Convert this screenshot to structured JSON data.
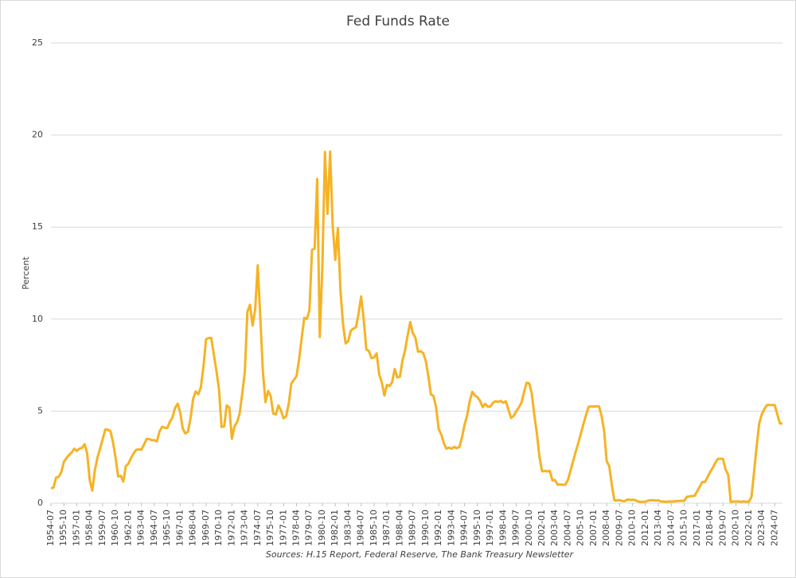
{
  "chart_data": {
    "type": "line",
    "title": "Fed Funds Rate",
    "y_label": "Percent",
    "source": "Sources: H.15 Report, Federal Reserve, The Bank Treasury Newsletter",
    "color": "#f5b324",
    "grid": true,
    "ylim": [
      0,
      25
    ],
    "yticks": [
      0,
      5,
      10,
      15,
      20,
      25
    ],
    "categories": [
      "1954-07",
      null,
      null,
      null,
      null,
      "1955-10",
      null,
      null,
      null,
      null,
      "1957-01",
      null,
      null,
      null,
      null,
      "1958-04",
      null,
      null,
      null,
      null,
      "1959-07",
      null,
      null,
      null,
      null,
      "1960-10",
      null,
      null,
      null,
      null,
      "1962-01",
      null,
      null,
      null,
      null,
      "1963-04",
      null,
      null,
      null,
      null,
      "1964-07",
      null,
      null,
      null,
      null,
      "1965-10",
      null,
      null,
      null,
      null,
      "1967-01",
      null,
      null,
      null,
      null,
      "1968-04",
      null,
      null,
      null,
      null,
      "1969-07",
      null,
      null,
      null,
      null,
      "1970-10",
      null,
      null,
      null,
      null,
      "1972-01",
      null,
      null,
      null,
      null,
      "1973-04",
      null,
      null,
      null,
      null,
      "1974-07",
      null,
      null,
      null,
      null,
      "1975-10",
      null,
      null,
      null,
      null,
      "1977-01",
      null,
      null,
      null,
      null,
      "1978-04",
      null,
      null,
      null,
      null,
      "1979-07",
      null,
      null,
      null,
      null,
      "1980-10",
      null,
      null,
      null,
      null,
      "1982-01",
      null,
      null,
      null,
      null,
      "1983-04",
      null,
      null,
      null,
      null,
      "1984-07",
      null,
      null,
      null,
      null,
      "1985-10",
      null,
      null,
      null,
      null,
      "1987-01",
      null,
      null,
      null,
      null,
      "1988-04",
      null,
      null,
      null,
      null,
      "1989-07",
      null,
      null,
      null,
      null,
      "1990-10",
      null,
      null,
      null,
      null,
      "1992-01",
      null,
      null,
      null,
      null,
      "1993-04",
      null,
      null,
      null,
      null,
      "1994-07",
      null,
      null,
      null,
      null,
      "1995-10",
      null,
      null,
      null,
      null,
      "1997-01",
      null,
      null,
      null,
      null,
      "1998-04",
      null,
      null,
      null,
      null,
      "1999-07",
      null,
      null,
      null,
      null,
      "2000-10",
      null,
      null,
      null,
      null,
      "2002-01",
      null,
      null,
      null,
      null,
      "2003-04",
      null,
      null,
      null,
      null,
      "2004-07",
      null,
      null,
      null,
      null,
      "2005-10",
      null,
      null,
      null,
      null,
      "2007-01",
      null,
      null,
      null,
      null,
      "2008-04",
      null,
      null,
      null,
      null,
      "2009-07",
      null,
      null,
      null,
      null,
      "2010-10",
      null,
      null,
      null,
      null,
      "2012-01",
      null,
      null,
      null,
      null,
      "2013-04",
      null,
      null,
      null,
      null,
      "2014-07",
      null,
      null,
      null,
      null,
      "2015-10",
      null,
      null,
      null,
      null,
      "2017-01",
      null,
      null,
      null,
      null,
      "2018-04",
      null,
      null,
      null,
      null,
      "2019-07",
      null,
      null,
      null,
      null,
      "2020-10",
      null,
      null,
      null,
      null,
      "2022-01",
      null,
      null,
      null,
      null,
      "2023-04",
      null,
      null,
      null,
      null,
      "2024-07",
      null,
      null,
      null
    ],
    "values": [
      0.8,
      0.85,
      1.39,
      1.43,
      1.68,
      2.24,
      2.45,
      2.62,
      2.75,
      2.96,
      2.84,
      2.96,
      3.0,
      3.2,
      2.72,
      1.26,
      0.68,
      1.8,
      2.48,
      2.96,
      3.47,
      4.0,
      3.99,
      3.92,
      3.32,
      2.47,
      1.45,
      1.49,
      1.18,
      2.02,
      2.15,
      2.46,
      2.71,
      2.9,
      2.92,
      2.9,
      3.18,
      3.48,
      3.48,
      3.42,
      3.42,
      3.36,
      3.9,
      4.15,
      4.1,
      4.08,
      4.42,
      4.65,
      5.17,
      5.4,
      4.94,
      4.05,
      3.79,
      3.88,
      4.61,
      5.66,
      6.07,
      5.92,
      6.3,
      7.41,
      8.9,
      8.97,
      8.98,
      8.1,
      7.21,
      6.2,
      4.14,
      4.16,
      5.31,
      5.2,
      3.5,
      4.17,
      4.4,
      4.87,
      5.94,
      7.12,
      10.4,
      10.78,
      9.65,
      10.51,
      12.92,
      10.06,
      7.13,
      5.49,
      6.1,
      5.82,
      4.87,
      4.82,
      5.31,
      5.03,
      4.61,
      4.73,
      5.42,
      6.51,
      6.7,
      6.9,
      7.81,
      8.96,
      10.07,
      10.01,
      10.47,
      13.77,
      13.82,
      17.61,
      9.03,
      12.81,
      19.08,
      15.72,
      19.1,
      15.08,
      13.22,
      14.94,
      11.56,
      9.71,
      8.68,
      8.8,
      9.37,
      9.48,
      9.56,
      10.29,
      11.23,
      9.99,
      8.35,
      8.27,
      7.88,
      7.92,
      8.14,
      6.99,
      6.56,
      5.85,
      6.43,
      6.36,
      6.58,
      7.29,
      6.83,
      6.87,
      7.75,
      8.3,
      9.12,
      9.84,
      9.24,
      8.99,
      8.23,
      8.26,
      8.15,
      7.74,
      6.91,
      5.91,
      5.82,
      5.21,
      4.03,
      3.73,
      3.25,
      2.96,
      3.02,
      2.96,
      3.06,
      2.99,
      3.05,
      3.56,
      4.26,
      4.76,
      5.53,
      6.05,
      5.85,
      5.76,
      5.56,
      5.22,
      5.4,
      5.24,
      5.25,
      5.45,
      5.54,
      5.5,
      5.56,
      5.45,
      5.54,
      5.07,
      4.63,
      4.74,
      4.99,
      5.2,
      5.45,
      6.02,
      6.54,
      6.51,
      5.98,
      4.8,
      3.77,
      2.49,
      1.73,
      1.75,
      1.73,
      1.75,
      1.24,
      1.26,
      1.01,
      1.01,
      1.0,
      1.0,
      1.26,
      1.76,
      2.28,
      2.79,
      3.26,
      3.78,
      4.29,
      4.79,
      5.24,
      5.25,
      5.25,
      5.26,
      5.26,
      4.76,
      3.94,
      2.28,
      2.01,
      0.97,
      0.15,
      0.15,
      0.16,
      0.12,
      0.11,
      0.2,
      0.18,
      0.19,
      0.17,
      0.1,
      0.07,
      0.07,
      0.08,
      0.14,
      0.16,
      0.16,
      0.14,
      0.15,
      0.09,
      0.09,
      0.07,
      0.09,
      0.09,
      0.09,
      0.11,
      0.12,
      0.13,
      0.12,
      0.34,
      0.37,
      0.39,
      0.4,
      0.65,
      0.9,
      1.15,
      1.15,
      1.41,
      1.69,
      1.91,
      2.19,
      2.4,
      2.42,
      2.4,
      1.83,
      1.55,
      0.05,
      0.09,
      0.09,
      0.09,
      0.07,
      0.1,
      0.08,
      0.08,
      0.33,
      1.68,
      3.08,
      4.33,
      4.83,
      5.12,
      5.33,
      5.33,
      5.33,
      5.33,
      4.83,
      4.33,
      4.33
    ]
  }
}
